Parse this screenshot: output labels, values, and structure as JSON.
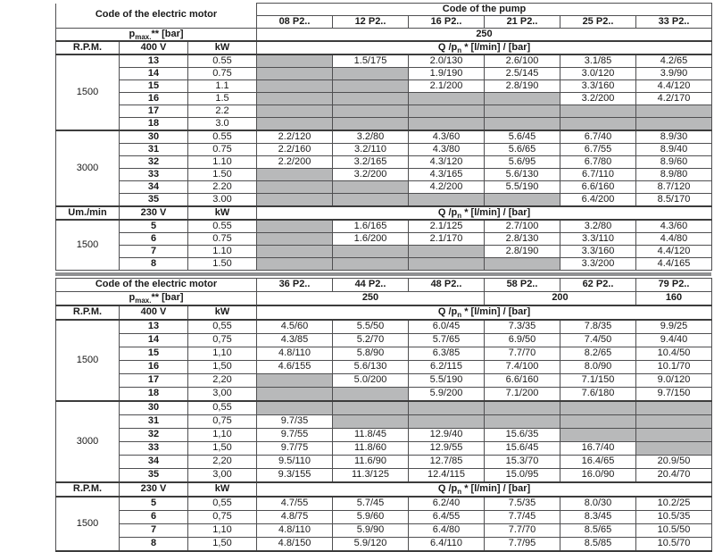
{
  "colors": {
    "na_cell_gray": "#b8b9ba",
    "grid_border": "#4f4f51",
    "strong_border": "#3c3c3c",
    "table_separator": "#8f9092",
    "text": "#1a1a1a"
  },
  "labels": {
    "motor_header": "Code of the electric motor",
    "pump_header": "Code of the pump",
    "pmax_prefix": "p",
    "pmax_sub": "max.",
    "pmax_suffix": "** [bar]",
    "q_prefix": "Q /p",
    "q_sub": "n",
    "q_suffix": " * [l/min] / [bar]"
  },
  "tables": [
    {
      "name": "upper",
      "show_pump_title": true,
      "pump_codes": [
        "08 P2..",
        "12 P2..",
        "16 P2..",
        "21 P2..",
        "25 P2..",
        "33 P2.."
      ],
      "pmax_values": [
        {
          "text": "250",
          "span": 6
        }
      ],
      "sections": [
        {
          "header": {
            "rpm_label": "R.P.M.",
            "voltage": "400 V",
            "kw_label": "kW"
          },
          "rpm": "1500",
          "rows": [
            {
              "code": "13",
              "kw": "0.55",
              "values": [
                "",
                "1.5/175",
                "2.0/130",
                "2.6/100",
                "3.1/85",
                "4.2/65"
              ]
            },
            {
              "code": "14",
              "kw": "0.75",
              "values": [
                "",
                "",
                "1.9/190",
                "2.5/145",
                "3.0/120",
                "3.9/90"
              ]
            },
            {
              "code": "15",
              "kw": "1.1",
              "values": [
                "",
                "",
                "2.1/200",
                "2.8/190",
                "3.3/160",
                "4.4/120"
              ]
            },
            {
              "code": "16",
              "kw": "1.5",
              "values": [
                "",
                "",
                "",
                "",
                "3.2/200",
                "4.2/170"
              ]
            },
            {
              "code": "17",
              "kw": "2.2",
              "values": [
                "",
                "",
                "",
                "",
                "",
                ""
              ]
            },
            {
              "code": "18",
              "kw": "3.0",
              "values": [
                "",
                "",
                "",
                "",
                "",
                ""
              ]
            }
          ]
        },
        {
          "header": null,
          "rpm": "3000",
          "rows": [
            {
              "code": "30",
              "kw": "0.55",
              "values": [
                "2.2/120",
                "3.2/80",
                "4.3/60",
                "5.6/45",
                "6.7/40",
                "8.9/30"
              ]
            },
            {
              "code": "31",
              "kw": "0.75",
              "values": [
                "2.2/160",
                "3.2/110",
                "4.3/80",
                "5.6/65",
                "6.7/55",
                "8.9/40"
              ]
            },
            {
              "code": "32",
              "kw": "1.10",
              "values": [
                "2.2/200",
                "3.2/165",
                "4.3/120",
                "5.6/95",
                "6.7/80",
                "8.9/60"
              ]
            },
            {
              "code": "33",
              "kw": "1.50",
              "values": [
                "",
                "3.2/200",
                "4.3/165",
                "5.6/130",
                "6.7/110",
                "8.9/80"
              ]
            },
            {
              "code": "34",
              "kw": "2.20",
              "values": [
                "",
                "",
                "4.2/200",
                "5.5/190",
                "6.6/160",
                "8.7/120"
              ]
            },
            {
              "code": "35",
              "kw": "3.00",
              "values": [
                "",
                "",
                "",
                "",
                "6.4/200",
                "8.5/170"
              ]
            }
          ]
        },
        {
          "header": {
            "rpm_label": "Um./min",
            "voltage": "230 V",
            "kw_label": "kW"
          },
          "rpm": "1500",
          "rows": [
            {
              "code": "5",
              "kw": "0.55",
              "values": [
                "",
                "1.6/165",
                "2.1/125",
                "2.7/100",
                "3.2/80",
                "4.3/60"
              ]
            },
            {
              "code": "6",
              "kw": "0.75",
              "values": [
                "",
                "1.6/200",
                "2.1/170",
                "2.8/130",
                "3.3/110",
                "4.4/80"
              ]
            },
            {
              "code": "7",
              "kw": "1.10",
              "values": [
                "",
                "",
                "",
                "2.8/190",
                "3.3/160",
                "4.4/120"
              ]
            },
            {
              "code": "8",
              "kw": "1.50",
              "values": [
                "",
                "",
                "",
                "",
                "3.3/200",
                "4.4/165"
              ]
            }
          ]
        }
      ]
    },
    {
      "name": "lower",
      "show_pump_title": false,
      "pump_codes": [
        "36 P2..",
        "44 P2..",
        "48 P2..",
        "58 P2..",
        "62 P2..",
        "79 P2.."
      ],
      "pmax_values": [
        {
          "text": "250",
          "span": 3
        },
        {
          "text": "200",
          "span": 2
        },
        {
          "text": "160",
          "span": 1
        }
      ],
      "sections": [
        {
          "header": {
            "rpm_label": "R.P.M.",
            "voltage": "400 V",
            "kw_label": "kW"
          },
          "rpm": "1500",
          "rows": [
            {
              "code": "13",
              "kw": "0,55",
              "values": [
                "4.5/60",
                "5.5/50",
                "6.0/45",
                "7.3/35",
                "7.8/35",
                "9.9/25"
              ]
            },
            {
              "code": "14",
              "kw": "0,75",
              "values": [
                "4.3/85",
                "5.2/70",
                "5.7/65",
                "6.9/50",
                "7.4/50",
                "9.4/40"
              ]
            },
            {
              "code": "15",
              "kw": "1,10",
              "values": [
                "4.8/110",
                "5.8/90",
                "6.3/85",
                "7.7/70",
                "8.2/65",
                "10.4/50"
              ]
            },
            {
              "code": "16",
              "kw": "1,50",
              "values": [
                "4.6/155",
                "5.6/130",
                "6.2/115",
                "7.4/100",
                "8.0/90",
                "10.1/70"
              ]
            },
            {
              "code": "17",
              "kw": "2,20",
              "values": [
                "",
                "5.0/200",
                "5.5/190",
                "6.6/160",
                "7.1/150",
                "9.0/120"
              ]
            },
            {
              "code": "18",
              "kw": "3,00",
              "values": [
                "",
                "",
                "5.9/200",
                "7.1/200",
                "7.6/180",
                "9.7/150"
              ]
            }
          ]
        },
        {
          "header": null,
          "rpm": "3000",
          "rows": [
            {
              "code": "30",
              "kw": "0,55",
              "values": [
                "",
                "",
                "",
                "",
                "",
                ""
              ]
            },
            {
              "code": "31",
              "kw": "0,75",
              "values": [
                "9.7/35",
                "",
                "",
                "",
                "",
                ""
              ]
            },
            {
              "code": "32",
              "kw": "1,10",
              "values": [
                "9.7/55",
                "11.8/45",
                "12.9/40",
                "15.6/35",
                "",
                ""
              ]
            },
            {
              "code": "33",
              "kw": "1,50",
              "values": [
                "9.7/75",
                "11.8/60",
                "12.9/55",
                "15.6/45",
                "16.7/40",
                ""
              ]
            },
            {
              "code": "34",
              "kw": "2,20",
              "values": [
                "9.5/110",
                "11.6/90",
                "12.7/85",
                "15.3/70",
                "16.4/65",
                "20.9/50"
              ]
            },
            {
              "code": "35",
              "kw": "3,00",
              "values": [
                "9.3/155",
                "11.3/125",
                "12.4/115",
                "15.0/95",
                "16.0/90",
                "20.4/70"
              ]
            }
          ]
        },
        {
          "header": {
            "rpm_label": "R.P.M.",
            "voltage": "230 V",
            "kw_label": "kW"
          },
          "rpm": "1500",
          "rows": [
            {
              "code": "5",
              "kw": "0,55",
              "values": [
                "4.7/55",
                "5.7/45",
                "6.2/40",
                "7.5/35",
                "8.0/30",
                "10.2/25"
              ]
            },
            {
              "code": "6",
              "kw": "0,75",
              "values": [
                "4.8/75",
                "5.9/60",
                "6.4/55",
                "7.7/45",
                "8.3/45",
                "10.5/35"
              ]
            },
            {
              "code": "7",
              "kw": "1,10",
              "values": [
                "4.8/110",
                "5.9/90",
                "6.4/80",
                "7.7/70",
                "8.5/65",
                "10.5/50"
              ]
            },
            {
              "code": "8",
              "kw": "1,50",
              "values": [
                "4.8/150",
                "5.9/120",
                "6.4/110",
                "7.7/95",
                "8.5/85",
                "10.5/70"
              ]
            }
          ]
        }
      ]
    }
  ]
}
